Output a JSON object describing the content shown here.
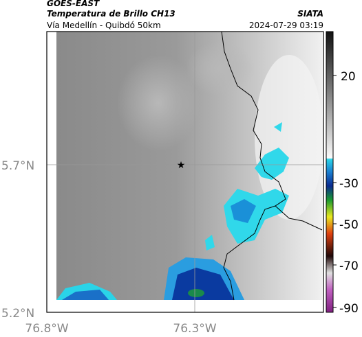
{
  "header": {
    "source": "GOES-EAST",
    "title": "Temperatura de Brillo CH13",
    "subtitle": "Vía Medellín - Quibdó 50km",
    "agency": "SIATA",
    "timestamp": "2024-07-29 03:19"
  },
  "map": {
    "lat_labels": [
      "5.7°N",
      "5.2°N"
    ],
    "lon_labels": [
      "76.8°W",
      "76.3°W"
    ]
  },
  "colorbar": {
    "ticks": [
      20,
      -30,
      -50,
      -70,
      -90
    ]
  }
}
